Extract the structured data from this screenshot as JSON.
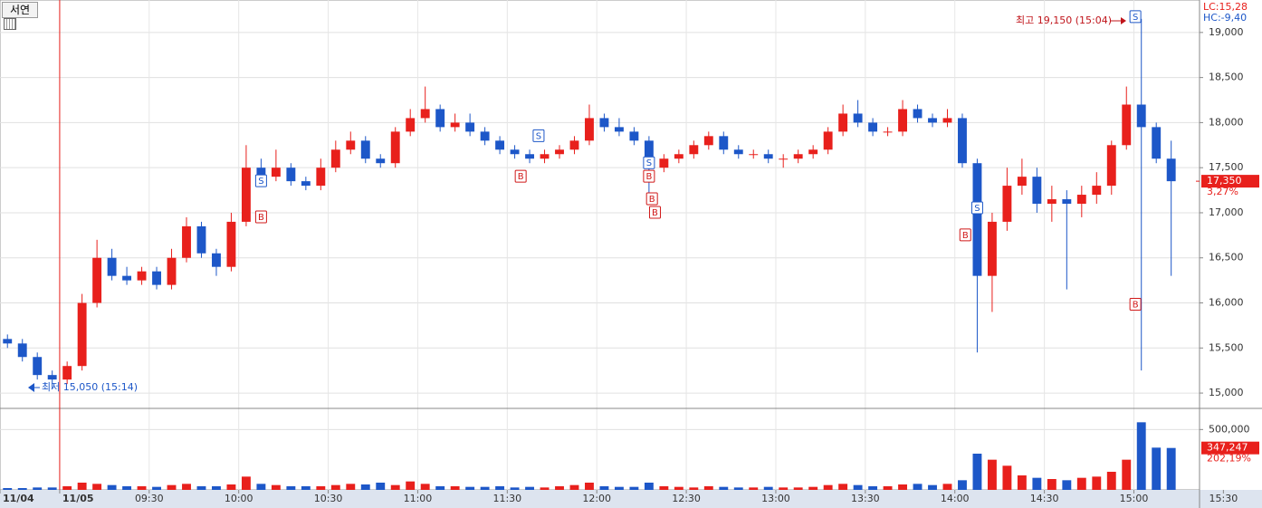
{
  "toolbar": {
    "button": "서연"
  },
  "chart_data": {
    "type": "candlestick",
    "x": [
      520,
      525,
      530,
      535,
      540,
      545,
      550,
      555,
      560,
      565,
      570,
      575,
      580,
      585,
      590,
      595,
      600,
      605,
      610,
      615,
      620,
      625,
      630,
      635,
      640,
      645,
      650,
      655,
      660,
      665,
      670,
      675,
      680,
      685,
      690,
      695,
      700,
      705,
      710,
      715,
      720,
      725,
      730,
      735,
      740,
      745,
      750,
      755,
      760,
      765,
      770,
      775,
      780,
      785,
      790,
      795,
      800,
      805,
      810,
      815,
      820,
      825,
      830,
      835,
      840,
      845,
      850,
      855,
      860,
      865,
      870,
      875,
      880,
      885,
      890,
      895,
      900,
      905,
      910
    ],
    "open": [
      15600,
      15550,
      15400,
      15200,
      15150,
      15300,
      16000,
      16500,
      16300,
      16250,
      16350,
      16200,
      16500,
      16850,
      16550,
      16400,
      16900,
      17500,
      17400,
      17500,
      17350,
      17300,
      17500,
      17700,
      17800,
      17600,
      17550,
      17900,
      18050,
      18150,
      17950,
      18000,
      17900,
      17800,
      17700,
      17650,
      17600,
      17650,
      17700,
      17800,
      18050,
      17950,
      17900,
      17800,
      17500,
      17600,
      17650,
      17750,
      17850,
      17700,
      17650,
      17650,
      17600,
      17600,
      17650,
      17700,
      17900,
      18100,
      18000,
      17900,
      17900,
      18150,
      18050,
      18000,
      18050,
      17550,
      16300,
      16900,
      17300,
      17400,
      17100,
      17150,
      17100,
      17200,
      17300,
      17750,
      18200,
      17950,
      17600
    ],
    "high": [
      15650,
      15600,
      15450,
      15250,
      15350,
      16100,
      16700,
      16600,
      16400,
      16400,
      16400,
      16600,
      16950,
      16900,
      16600,
      17000,
      17750,
      17600,
      17700,
      17550,
      17400,
      17600,
      17800,
      17900,
      17850,
      17650,
      17950,
      18150,
      18400,
      18200,
      18100,
      18100,
      17950,
      17850,
      17750,
      17700,
      17700,
      17750,
      17850,
      18200,
      18100,
      18050,
      17950,
      17850,
      17650,
      17700,
      17800,
      17900,
      17900,
      17750,
      17700,
      17700,
      17650,
      17700,
      17750,
      17950,
      18200,
      18250,
      18050,
      17950,
      18250,
      18200,
      18100,
      18150,
      18100,
      17600,
      17000,
      17500,
      17600,
      17500,
      17300,
      17250,
      17300,
      17450,
      17800,
      18400,
      19150,
      18000,
      17800
    ],
    "low": [
      15500,
      15350,
      15150,
      15050,
      15100,
      15250,
      15950,
      16250,
      16200,
      16200,
      16150,
      16150,
      16450,
      16500,
      16300,
      16350,
      16850,
      17300,
      17350,
      17300,
      17250,
      17250,
      17450,
      17650,
      17550,
      17500,
      17500,
      17850,
      18000,
      17900,
      17900,
      17850,
      17750,
      17650,
      17600,
      17550,
      17550,
      17600,
      17650,
      17750,
      17900,
      17850,
      17750,
      17100,
      17450,
      17550,
      17600,
      17700,
      17650,
      17600,
      17600,
      17550,
      17500,
      17550,
      17600,
      17650,
      17850,
      17950,
      17850,
      17850,
      17850,
      18000,
      17950,
      17950,
      17500,
      15450,
      15900,
      16800,
      17200,
      17000,
      16900,
      16150,
      16950,
      17100,
      17200,
      17700,
      15250,
      17550,
      16300
    ],
    "close": [
      15550,
      15400,
      15200,
      15150,
      15300,
      16000,
      16500,
      16300,
      16250,
      16350,
      16200,
      16500,
      16850,
      16550,
      16400,
      16900,
      17500,
      17400,
      17500,
      17350,
      17300,
      17500,
      17700,
      17800,
      17600,
      17550,
      17900,
      18050,
      18150,
      17950,
      18000,
      17900,
      17800,
      17700,
      17650,
      17600,
      17650,
      17700,
      17800,
      18050,
      17950,
      17900,
      17800,
      17500,
      17600,
      17650,
      17750,
      17850,
      17700,
      17650,
      17650,
      17600,
      17600,
      17650,
      17700,
      17900,
      18100,
      18000,
      17900,
      17900,
      18150,
      18050,
      18000,
      18050,
      17550,
      16300,
      16900,
      17300,
      17400,
      17100,
      17150,
      17100,
      17200,
      17300,
      17750,
      18200,
      17950,
      17600,
      17350
    ],
    "up_color": "#e8201c",
    "down_color": "#1d57c8",
    "xlim": [
      520,
      922
    ],
    "xticks": [
      {
        "value": 520,
        "label": "11/04"
      },
      {
        "value": 540,
        "label": "11/05"
      },
      {
        "value": 570,
        "label": "09:30"
      },
      {
        "value": 600,
        "label": "10:00"
      },
      {
        "value": 630,
        "label": "10:30"
      },
      {
        "value": 660,
        "label": "11:00"
      },
      {
        "value": 690,
        "label": "11:30"
      },
      {
        "value": 720,
        "label": "12:00"
      },
      {
        "value": 750,
        "label": "12:30"
      },
      {
        "value": 780,
        "label": "13:00"
      },
      {
        "value": 810,
        "label": "13:30"
      },
      {
        "value": 840,
        "label": "14:00"
      },
      {
        "value": 870,
        "label": "14:30"
      },
      {
        "value": 900,
        "label": "15:00"
      },
      {
        "value": 930,
        "label": "15:30"
      }
    ],
    "ylim": [
      14840,
      19340
    ],
    "yticks": [
      {
        "value": 15000,
        "label": "15,000"
      },
      {
        "value": 15500,
        "label": "15,500"
      },
      {
        "value": 16000,
        "label": "16,000"
      },
      {
        "value": 16500,
        "label": "16,500"
      },
      {
        "value": 17000,
        "label": "17,000"
      },
      {
        "value": 17500,
        "label": "17,500"
      },
      {
        "value": 18000,
        "label": "18,000"
      },
      {
        "value": 18500,
        "label": "18,500"
      },
      {
        "value": 19000,
        "label": "19,000"
      }
    ],
    "grid": true,
    "day_break": 540,
    "indicators": {
      "lc": "LC:15,28",
      "hc": "HC:-9,40"
    },
    "annotations": {
      "high": "최고 19,150 (15:04)",
      "low": "최저 15,050 (15:14)"
    },
    "last_price": {
      "value": 17350,
      "label": "17,350"
    },
    "change": "3,27%",
    "signals": [
      {
        "label": "S",
        "x": 605,
        "y": 17350
      },
      {
        "label": "B",
        "x": 605,
        "y": 16950
      },
      {
        "label": "S",
        "x": 698,
        "y": 17850
      },
      {
        "label": "B",
        "x": 692,
        "y": 17400
      },
      {
        "label": "S",
        "x": 735,
        "y": 17550
      },
      {
        "label": "B",
        "x": 735,
        "y": 17400
      },
      {
        "label": "B",
        "x": 736,
        "y": 17150
      },
      {
        "label": "B",
        "x": 737,
        "y": 17000
      },
      {
        "label": "B",
        "x": 841,
        "y": 16750
      },
      {
        "label": "S",
        "x": 845,
        "y": 17050
      },
      {
        "label": "S",
        "x": 898,
        "y": 19170
      },
      {
        "label": "B",
        "x": 898,
        "y": 15980
      }
    ],
    "volume": {
      "values": [
        15000,
        15000,
        20000,
        20000,
        30000,
        60000,
        50000,
        40000,
        30000,
        30000,
        25000,
        40000,
        50000,
        30000,
        30000,
        45000,
        110000,
        50000,
        40000,
        30000,
        30000,
        30000,
        40000,
        50000,
        45000,
        60000,
        40000,
        70000,
        50000,
        30000,
        30000,
        25000,
        25000,
        30000,
        20000,
        25000,
        20000,
        30000,
        40000,
        60000,
        30000,
        25000,
        25000,
        60000,
        30000,
        25000,
        20000,
        30000,
        25000,
        20000,
        20000,
        25000,
        20000,
        20000,
        25000,
        40000,
        50000,
        40000,
        30000,
        30000,
        45000,
        50000,
        40000,
        50000,
        80000,
        300000,
        250000,
        200000,
        120000,
        100000,
        90000,
        80000,
        100000,
        110000,
        150000,
        250000,
        560000,
        350000,
        347247
      ],
      "ylim": [
        0,
        660000
      ],
      "yticks": [
        {
          "value": 500000,
          "label": "500,000"
        }
      ],
      "last": {
        "value": 347247,
        "label": "347,247"
      },
      "ratio": "202,19%"
    }
  }
}
